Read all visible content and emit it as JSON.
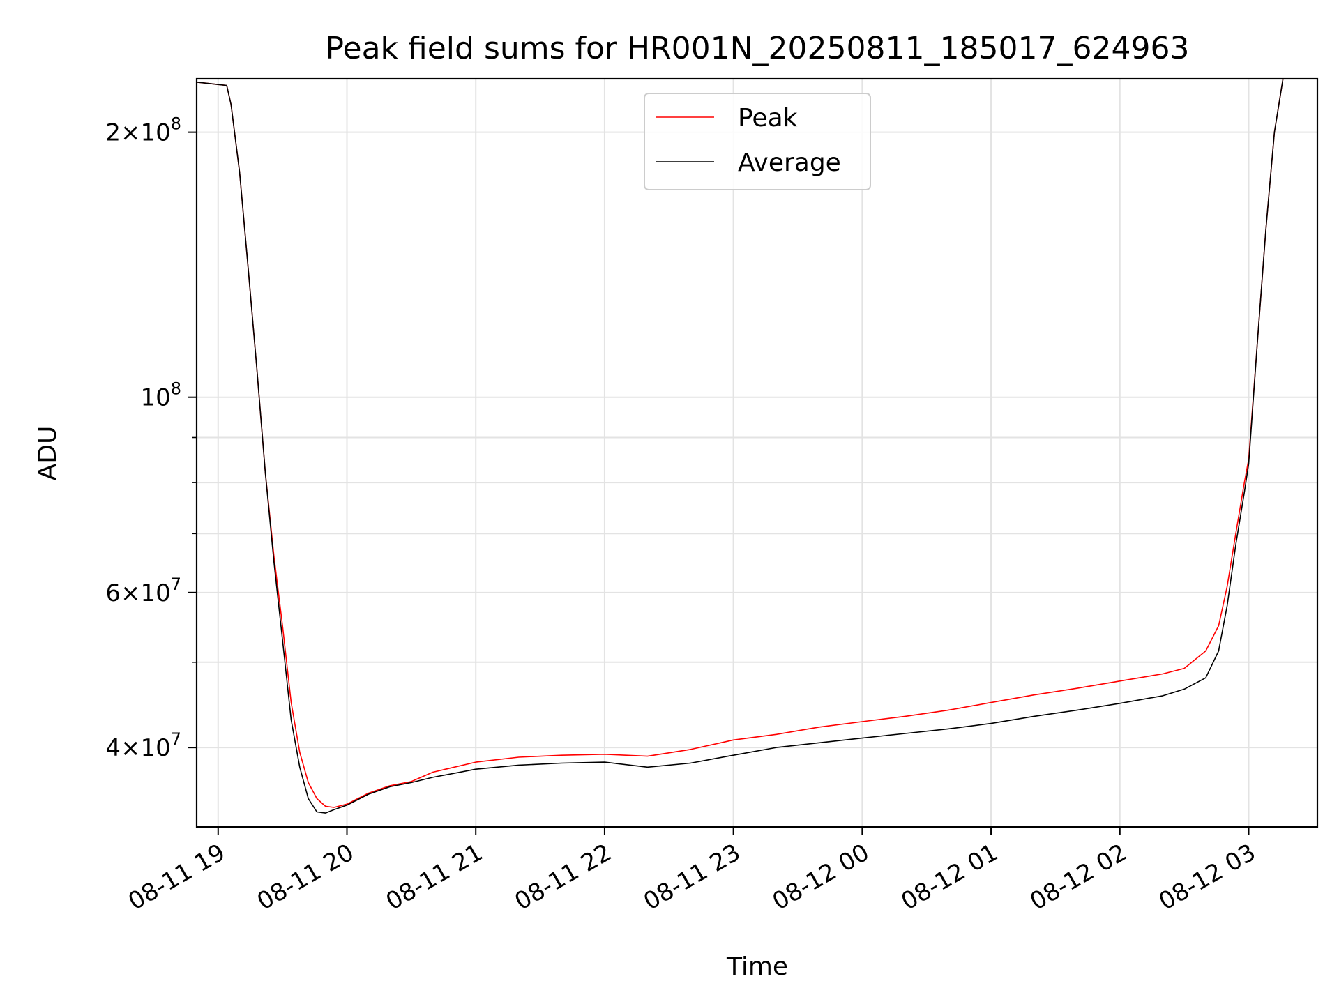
{
  "chart_data": {
    "type": "line",
    "title": "Peak field sums for HR001N_20250811_185017_624963",
    "xlabel": "Time",
    "ylabel": "ADU",
    "yscale": "log",
    "grid": true,
    "legend_position": "upper-center",
    "xlim": [
      "2025-08-11 18:50",
      "2025-08-12 03:32"
    ],
    "ylim": [
      32500000,
      230000000
    ],
    "x_ticks": [
      {
        "value": "2025-08-11 19:00",
        "label": "08-11 19"
      },
      {
        "value": "2025-08-11 20:00",
        "label": "08-11 20"
      },
      {
        "value": "2025-08-11 21:00",
        "label": "08-11 21"
      },
      {
        "value": "2025-08-11 22:00",
        "label": "08-11 22"
      },
      {
        "value": "2025-08-11 23:00",
        "label": "08-11 23"
      },
      {
        "value": "2025-08-12 00:00",
        "label": "08-12 00"
      },
      {
        "value": "2025-08-12 01:00",
        "label": "08-12 01"
      },
      {
        "value": "2025-08-12 02:00",
        "label": "08-12 02"
      },
      {
        "value": "2025-08-12 03:00",
        "label": "08-12 03"
      }
    ],
    "y_ticks": [
      {
        "value": 200000000,
        "mantissa": "2",
        "exponent": "8"
      },
      {
        "value": 100000000,
        "mantissa": "",
        "exponent": "8"
      },
      {
        "value": 60000000,
        "mantissa": "6",
        "exponent": "7"
      },
      {
        "value": 40000000,
        "mantissa": "4",
        "exponent": "7"
      }
    ],
    "y_minor_ticks": [
      90000000,
      80000000,
      70000000,
      50000000
    ],
    "series": [
      {
        "name": "Peak",
        "color": "#ff0000",
        "x": [
          "2025-08-11 18:50",
          "2025-08-11 19:04",
          "2025-08-11 19:06",
          "2025-08-11 19:10",
          "2025-08-11 19:14",
          "2025-08-11 19:18",
          "2025-08-11 19:22",
          "2025-08-11 19:26",
          "2025-08-11 19:30",
          "2025-08-11 19:34",
          "2025-08-11 19:38",
          "2025-08-11 19:42",
          "2025-08-11 19:46",
          "2025-08-11 19:50",
          "2025-08-11 19:54",
          "2025-08-11 20:00",
          "2025-08-11 20:10",
          "2025-08-11 20:20",
          "2025-08-11 20:30",
          "2025-08-11 20:40",
          "2025-08-11 21:00",
          "2025-08-11 21:20",
          "2025-08-11 21:40",
          "2025-08-11 22:00",
          "2025-08-11 22:20",
          "2025-08-11 22:40",
          "2025-08-11 23:00",
          "2025-08-11 23:20",
          "2025-08-11 23:40",
          "2025-08-12 00:00",
          "2025-08-12 00:20",
          "2025-08-12 00:40",
          "2025-08-12 01:00",
          "2025-08-12 01:20",
          "2025-08-12 01:40",
          "2025-08-12 02:00",
          "2025-08-12 02:20",
          "2025-08-12 02:30",
          "2025-08-12 02:40",
          "2025-08-12 02:46",
          "2025-08-12 02:50",
          "2025-08-12 02:54",
          "2025-08-12 02:58",
          "2025-08-12 03:00",
          "2025-08-12 03:04",
          "2025-08-12 03:08",
          "2025-08-12 03:12",
          "2025-08-12 03:16",
          "2025-08-12 03:20",
          "2025-08-12 03:32"
        ],
        "y": [
          228000000,
          226000000,
          215000000,
          180000000,
          140000000,
          108000000,
          82000000,
          66000000,
          55000000,
          45000000,
          39500000,
          36500000,
          35000000,
          34300000,
          34200000,
          34500000,
          35500000,
          36200000,
          36600000,
          37500000,
          38500000,
          39000000,
          39200000,
          39300000,
          39100000,
          39800000,
          40800000,
          41400000,
          42200000,
          42800000,
          43400000,
          44100000,
          45000000,
          45900000,
          46700000,
          47600000,
          48500000,
          49200000,
          51500000,
          55000000,
          61000000,
          70000000,
          80000000,
          85000000,
          115000000,
          155000000,
          200000000,
          230000000,
          231000000,
          231000000
        ]
      },
      {
        "name": "Average",
        "color": "#000000",
        "x": [
          "2025-08-11 18:50",
          "2025-08-11 19:04",
          "2025-08-11 19:06",
          "2025-08-11 19:10",
          "2025-08-11 19:14",
          "2025-08-11 19:18",
          "2025-08-11 19:22",
          "2025-08-11 19:26",
          "2025-08-11 19:30",
          "2025-08-11 19:34",
          "2025-08-11 19:38",
          "2025-08-11 19:42",
          "2025-08-11 19:46",
          "2025-08-11 19:50",
          "2025-08-11 19:54",
          "2025-08-11 20:00",
          "2025-08-11 20:10",
          "2025-08-11 20:20",
          "2025-08-11 20:30",
          "2025-08-11 20:40",
          "2025-08-11 21:00",
          "2025-08-11 21:20",
          "2025-08-11 21:40",
          "2025-08-11 22:00",
          "2025-08-11 22:20",
          "2025-08-11 22:40",
          "2025-08-11 23:00",
          "2025-08-11 23:20",
          "2025-08-11 23:40",
          "2025-08-12 00:00",
          "2025-08-12 00:20",
          "2025-08-12 00:40",
          "2025-08-12 01:00",
          "2025-08-12 01:20",
          "2025-08-12 01:40",
          "2025-08-12 02:00",
          "2025-08-12 02:20",
          "2025-08-12 02:30",
          "2025-08-12 02:40",
          "2025-08-12 02:46",
          "2025-08-12 02:50",
          "2025-08-12 02:54",
          "2025-08-12 02:58",
          "2025-08-12 03:00",
          "2025-08-12 03:04",
          "2025-08-12 03:08",
          "2025-08-12 03:12",
          "2025-08-12 03:16",
          "2025-08-12 03:20",
          "2025-08-12 03:32"
        ],
        "y": [
          228000000,
          226000000,
          215000000,
          180000000,
          140000000,
          108000000,
          82000000,
          65000000,
          53000000,
          43000000,
          38000000,
          35000000,
          33800000,
          33700000,
          34000000,
          34400000,
          35400000,
          36100000,
          36500000,
          37000000,
          37800000,
          38200000,
          38400000,
          38500000,
          38000000,
          38400000,
          39200000,
          40000000,
          40500000,
          41000000,
          41500000,
          42000000,
          42600000,
          43400000,
          44100000,
          44900000,
          45800000,
          46600000,
          48000000,
          51500000,
          58000000,
          68000000,
          78000000,
          84000000,
          115000000,
          155000000,
          200000000,
          230000000,
          231000000,
          231000000
        ]
      }
    ]
  }
}
